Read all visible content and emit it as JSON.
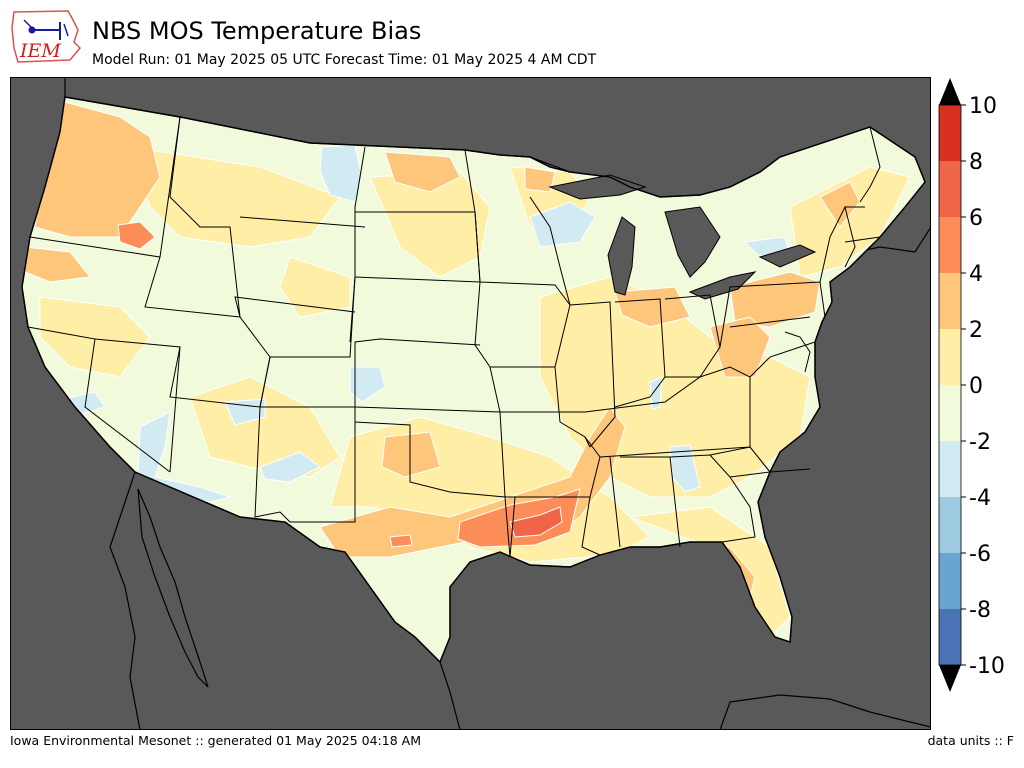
{
  "header": {
    "title": "NBS MOS Temperature Bias",
    "subtitle": "Model Run: 01 May 2025 05 UTC Forecast Time: 01 May 2025 4 AM CDT"
  },
  "logo": {
    "text": "IEM"
  },
  "footer": {
    "left": "Iowa Environmental Mesonet :: generated 01 May 2025 04:18 AM",
    "right": "data units :: F"
  },
  "colorbar": {
    "ticks": [
      "10",
      "8",
      "6",
      "4",
      "2",
      "0",
      "-2",
      "-4",
      "-6",
      "-8",
      "-10"
    ],
    "bins": [
      {
        "lo": 8,
        "hi": 10,
        "color": "#d7301f"
      },
      {
        "lo": 6,
        "hi": 8,
        "color": "#ef6548"
      },
      {
        "lo": 4,
        "hi": 6,
        "color": "#fc8d59"
      },
      {
        "lo": 2,
        "hi": 4,
        "color": "#fdc67a"
      },
      {
        "lo": 0,
        "hi": 2,
        "color": "#feeea6"
      },
      {
        "lo": -2,
        "hi": 0,
        "color": "#f1fadb"
      },
      {
        "lo": -4,
        "hi": -2,
        "color": "#d2ebf3"
      },
      {
        "lo": -6,
        "hi": -4,
        "color": "#9ecae1"
      },
      {
        "lo": -8,
        "hi": -6,
        "color": "#6aa5d0"
      },
      {
        "lo": -10,
        "hi": -8,
        "color": "#4a72b4"
      }
    ],
    "over_color": "#000000",
    "under_color": "#000000"
  },
  "map": {
    "background_color": "#595959"
  }
}
